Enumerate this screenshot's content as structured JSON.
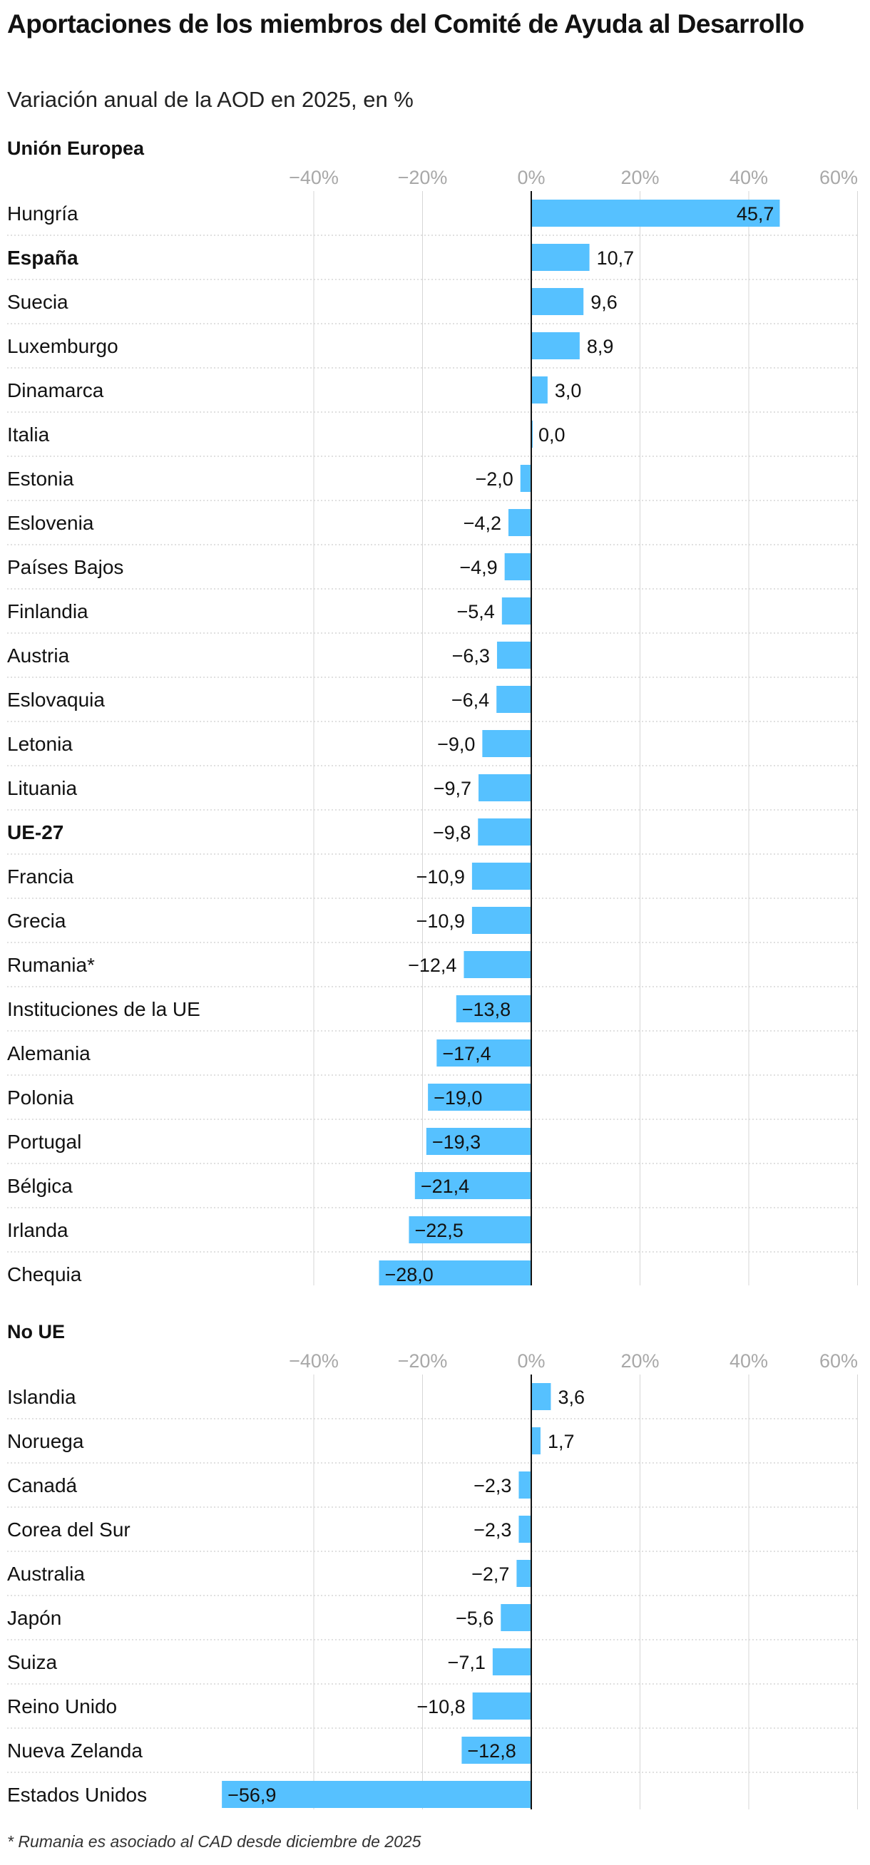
{
  "title": "Aportaciones de los miembros del Comité de Ayuda al Desarrollo",
  "subtitle": "Variación anual de la AOD en 2025, en %",
  "footnote": "* Rumania es asociado al CAD desde diciembre de 2025",
  "colors": {
    "bar": "#56c1ff",
    "grid": "#d6d6d6",
    "tick": "#a8a8a8",
    "text": "#121212",
    "axis": "#121212"
  },
  "chart_data": [
    {
      "type": "bar",
      "orientation": "horizontal",
      "title": "Unión Europea",
      "xlim": [
        -60,
        60
      ],
      "ticks": [
        -40,
        -20,
        0,
        20,
        40,
        60
      ],
      "tick_labels": [
        "−40%",
        "−20%",
        "0%",
        "20%",
        "40%",
        "60%"
      ],
      "grid": true,
      "categories": [
        "Hungría",
        "España",
        "Suecia",
        "Luxemburgo",
        "Dinamarca",
        "Italia",
        "Estonia",
        "Eslovenia",
        "Países Bajos",
        "Finlandia",
        "Austria",
        "Eslovaquia",
        "Letonia",
        "Lituania",
        "UE-27",
        "Francia",
        "Grecia",
        "Rumania*",
        "Instituciones de la UE",
        "Alemania",
        "Polonia",
        "Portugal",
        "Bélgica",
        "Irlanda",
        "Chequia"
      ],
      "values": [
        45.7,
        10.7,
        9.6,
        8.9,
        3.0,
        0.0,
        -2.0,
        -4.2,
        -4.9,
        -5.4,
        -6.3,
        -6.4,
        -9.0,
        -9.7,
        -9.8,
        -10.9,
        -10.9,
        -12.4,
        -13.8,
        -17.4,
        -19.0,
        -19.3,
        -21.4,
        -22.5,
        -28.0
      ],
      "value_labels": [
        "45,7",
        "10,7",
        "9,6",
        "8,9",
        "3,0",
        "0,0",
        "−2,0",
        "−4,2",
        "−4,9",
        "−5,4",
        "−6,3",
        "−6,4",
        "−9,0",
        "−9,7",
        "−9,8",
        "−10,9",
        "−10,9",
        "−12,4",
        "−13,8",
        "−17,4",
        "−19,0",
        "−19,3",
        "−21,4",
        "−22,5",
        "−28,0"
      ],
      "highlighted": [
        "España",
        "UE-27"
      ]
    },
    {
      "type": "bar",
      "orientation": "horizontal",
      "title": "No UE",
      "xlim": [
        -60,
        60
      ],
      "ticks": [
        -40,
        -20,
        0,
        20,
        40,
        60
      ],
      "tick_labels": [
        "−40%",
        "−20%",
        "0%",
        "20%",
        "40%",
        "60%"
      ],
      "grid": true,
      "categories": [
        "Islandia",
        "Noruega",
        "Canadá",
        "Corea del Sur",
        "Australia",
        "Japón",
        "Suiza",
        "Reino Unido",
        "Nueva Zelanda",
        "Estados Unidos"
      ],
      "values": [
        3.6,
        1.7,
        -2.3,
        -2.3,
        -2.7,
        -5.6,
        -7.1,
        -10.8,
        -12.8,
        -56.9
      ],
      "value_labels": [
        "3,6",
        "1,7",
        "−2,3",
        "−2,3",
        "−2,7",
        "−5,6",
        "−7,1",
        "−10,8",
        "−12,8",
        "−56,9"
      ],
      "highlighted": []
    }
  ]
}
